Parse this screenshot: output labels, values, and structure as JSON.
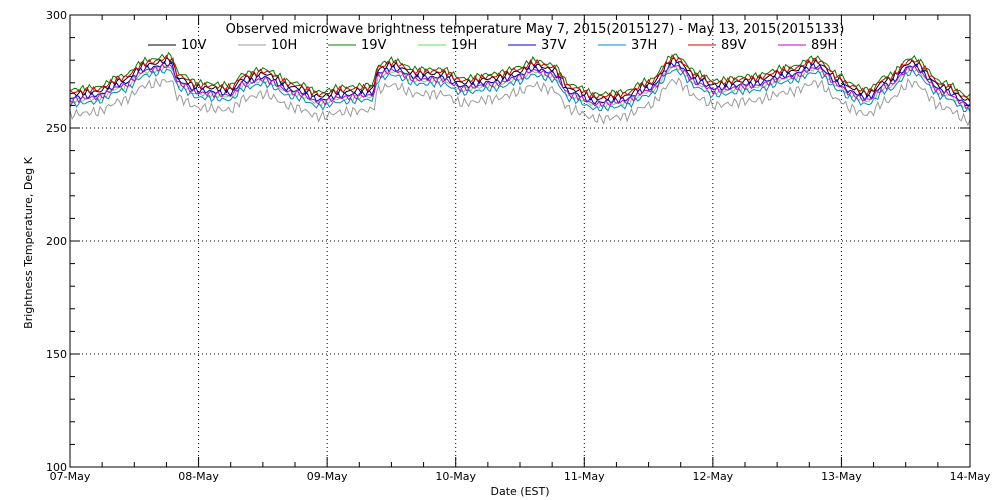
{
  "chart_data": {
    "type": "line",
    "title": "Observed microwave brightness temperature May  7, 2015(2015127) - May 13, 2015(2015133)",
    "xlabel": "Date (EST)",
    "ylabel": "Brightness Temperature, Deg K",
    "ylim": [
      100,
      300
    ],
    "xlim": [
      0,
      7
    ],
    "y_ticks": [
      100,
      150,
      200,
      250,
      300
    ],
    "x_tick_labels": [
      "07-May",
      "08-May",
      "09-May",
      "10-May",
      "11-May",
      "12-May",
      "13-May",
      "14-May"
    ],
    "grid": true,
    "legend_position": "top",
    "series": [
      {
        "name": "10V",
        "color": "#000000",
        "offset": 0.0
      },
      {
        "name": "10H",
        "color": "#9a9a9a",
        "offset": -9.0
      },
      {
        "name": "19V",
        "color": "#008000",
        "offset": 2.0
      },
      {
        "name": "19H",
        "color": "#66dd66",
        "offset": -3.0
      },
      {
        "name": "37V",
        "color": "#0000cc",
        "offset": -1.5
      },
      {
        "name": "37H",
        "color": "#0088cc",
        "offset": -4.5
      },
      {
        "name": "89V",
        "color": "#dd0000",
        "offset": 1.0
      },
      {
        "name": "89H",
        "color": "#cc00cc",
        "offset": -2.5
      }
    ],
    "base_profile": {
      "x": [
        0.0,
        0.2,
        0.4,
        0.6,
        0.78,
        0.85,
        1.0,
        1.25,
        1.35,
        1.5,
        1.75,
        1.95,
        2.1,
        2.35,
        2.4,
        2.5,
        2.7,
        2.9,
        3.05,
        3.3,
        3.5,
        3.6,
        3.75,
        3.9,
        4.1,
        4.3,
        4.5,
        4.7,
        4.9,
        5.0,
        5.3,
        5.6,
        5.8,
        6.0,
        6.05,
        6.2,
        6.35,
        6.55,
        6.8,
        7.0
      ],
      "y": [
        265,
        266,
        271,
        278,
        280,
        272,
        268,
        267,
        272,
        274,
        268,
        264,
        266,
        267,
        276,
        278,
        274,
        274,
        270,
        272,
        275,
        278,
        276,
        267,
        263,
        264,
        269,
        280,
        272,
        269,
        271,
        275,
        279,
        271,
        268,
        265,
        271,
        279,
        268,
        262
      ]
    }
  }
}
